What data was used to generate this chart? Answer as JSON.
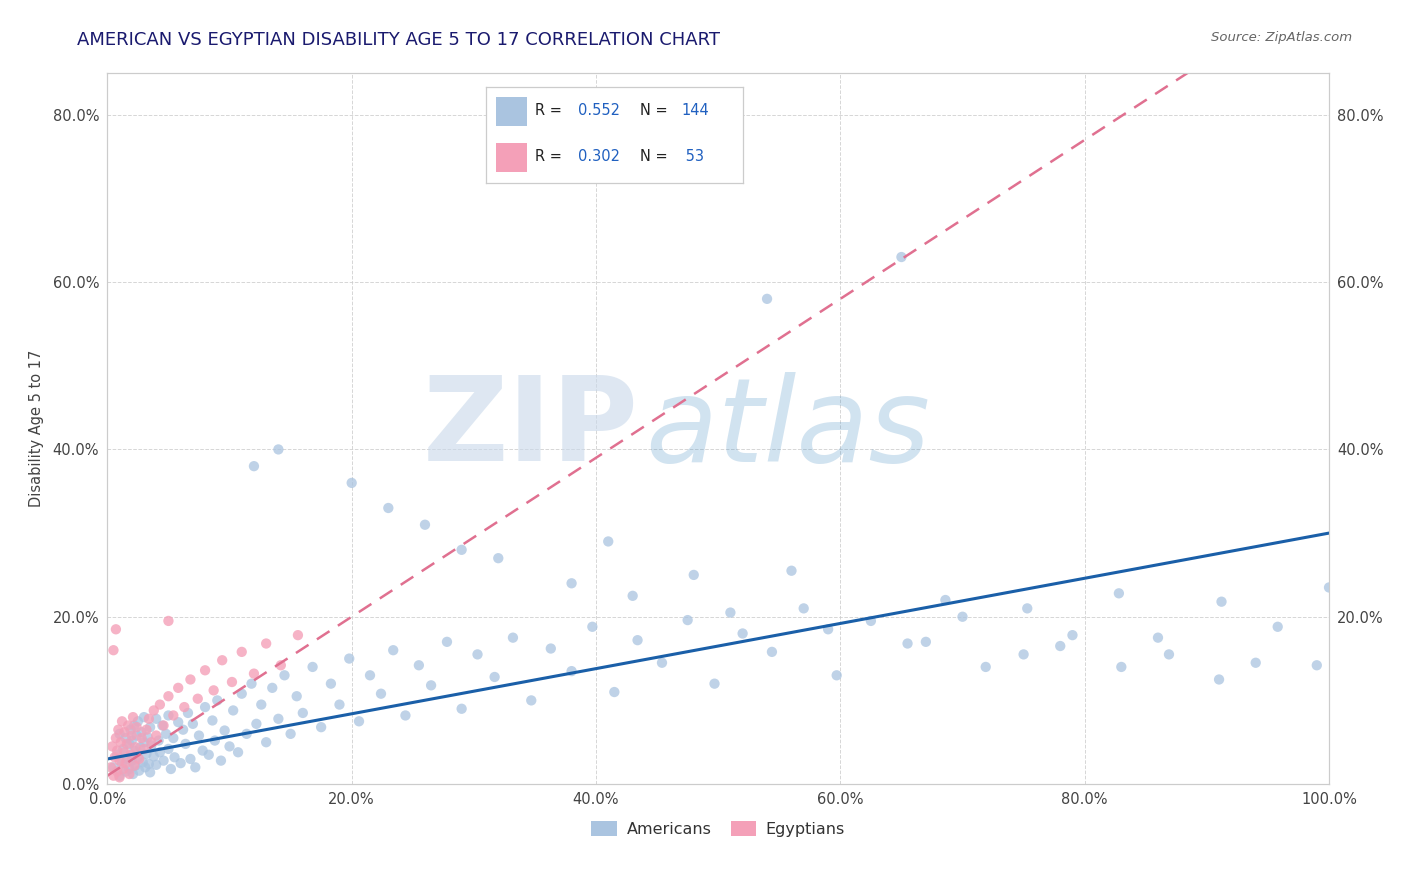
{
  "title": "AMERICAN VS EGYPTIAN DISABILITY AGE 5 TO 17 CORRELATION CHART",
  "source": "Source: ZipAtlas.com",
  "ylabel": "Disability Age 5 to 17",
  "xlim": [
    0.0,
    1.0
  ],
  "ylim": [
    0.0,
    0.85
  ],
  "xtick_labels": [
    "0.0%",
    "20.0%",
    "40.0%",
    "60.0%",
    "80.0%",
    "100.0%"
  ],
  "xtick_vals": [
    0.0,
    0.2,
    0.4,
    0.6,
    0.8,
    1.0
  ],
  "ytick_vals": [
    0.0,
    0.2,
    0.4,
    0.6,
    0.8
  ],
  "ytick_labels": [
    "0.0%",
    "20.0%",
    "40.0%",
    "60.0%",
    "80.0%"
  ],
  "right_ytick_vals": [
    0.2,
    0.4,
    0.6,
    0.8
  ],
  "right_ytick_labels": [
    "20.0%",
    "40.0%",
    "60.0%",
    "80.0%"
  ],
  "legend_label_americans": "Americans",
  "legend_label_egyptians": "Egyptians",
  "american_color": "#aac4e0",
  "egyptian_color": "#f4a0b8",
  "american_line_color": "#1a5fa8",
  "egyptian_line_color": "#e07090",
  "watermark_zip": "ZIP",
  "watermark_atlas": "atlas",
  "watermark_color_zip": "#c8d8ea",
  "watermark_color_atlas": "#4a90c4",
  "background_color": "#ffffff",
  "grid_color": "#cccccc",
  "title_color": "#1a1a6e",
  "legend_value_color": "#2060c0",
  "legend_box_border": "#cccccc",
  "americans_x": [
    0.005,
    0.008,
    0.01,
    0.01,
    0.012,
    0.013,
    0.015,
    0.015,
    0.016,
    0.018,
    0.018,
    0.019,
    0.02,
    0.02,
    0.021,
    0.022,
    0.022,
    0.023,
    0.024,
    0.025,
    0.025,
    0.026,
    0.027,
    0.028,
    0.029,
    0.03,
    0.03,
    0.031,
    0.032,
    0.033,
    0.034,
    0.035,
    0.035,
    0.036,
    0.038,
    0.04,
    0.04,
    0.042,
    0.043,
    0.045,
    0.046,
    0.048,
    0.05,
    0.05,
    0.052,
    0.054,
    0.055,
    0.058,
    0.06,
    0.062,
    0.064,
    0.066,
    0.068,
    0.07,
    0.072,
    0.075,
    0.078,
    0.08,
    0.083,
    0.086,
    0.088,
    0.09,
    0.093,
    0.096,
    0.1,
    0.103,
    0.107,
    0.11,
    0.114,
    0.118,
    0.122,
    0.126,
    0.13,
    0.135,
    0.14,
    0.145,
    0.15,
    0.155,
    0.16,
    0.168,
    0.175,
    0.183,
    0.19,
    0.198,
    0.206,
    0.215,
    0.224,
    0.234,
    0.244,
    0.255,
    0.265,
    0.278,
    0.29,
    0.303,
    0.317,
    0.332,
    0.347,
    0.363,
    0.38,
    0.397,
    0.415,
    0.434,
    0.454,
    0.475,
    0.497,
    0.52,
    0.544,
    0.57,
    0.597,
    0.625,
    0.655,
    0.686,
    0.719,
    0.753,
    0.79,
    0.828,
    0.869,
    0.912,
    0.958,
    1.0,
    0.54,
    0.65,
    0.32,
    0.41,
    0.48,
    0.56,
    0.7,
    0.78,
    0.86,
    0.94,
    0.2,
    0.23,
    0.26,
    0.29,
    0.38,
    0.43,
    0.51,
    0.59,
    0.67,
    0.75,
    0.83,
    0.91,
    0.99,
    0.12,
    0.14
  ],
  "americans_y": [
    0.02,
    0.035,
    0.01,
    0.06,
    0.025,
    0.042,
    0.015,
    0.055,
    0.03,
    0.048,
    0.018,
    0.065,
    0.028,
    0.052,
    0.012,
    0.04,
    0.07,
    0.022,
    0.058,
    0.032,
    0.075,
    0.016,
    0.044,
    0.062,
    0.026,
    0.05,
    0.08,
    0.02,
    0.036,
    0.056,
    0.024,
    0.068,
    0.014,
    0.046,
    0.033,
    0.078,
    0.023,
    0.052,
    0.038,
    0.07,
    0.028,
    0.06,
    0.042,
    0.082,
    0.018,
    0.055,
    0.032,
    0.074,
    0.025,
    0.065,
    0.048,
    0.085,
    0.03,
    0.072,
    0.02,
    0.058,
    0.04,
    0.092,
    0.035,
    0.076,
    0.052,
    0.1,
    0.028,
    0.064,
    0.045,
    0.088,
    0.038,
    0.108,
    0.06,
    0.12,
    0.072,
    0.095,
    0.05,
    0.115,
    0.078,
    0.13,
    0.06,
    0.105,
    0.085,
    0.14,
    0.068,
    0.12,
    0.095,
    0.15,
    0.075,
    0.13,
    0.108,
    0.16,
    0.082,
    0.142,
    0.118,
    0.17,
    0.09,
    0.155,
    0.128,
    0.175,
    0.1,
    0.162,
    0.135,
    0.188,
    0.11,
    0.172,
    0.145,
    0.196,
    0.12,
    0.18,
    0.158,
    0.21,
    0.13,
    0.195,
    0.168,
    0.22,
    0.14,
    0.21,
    0.178,
    0.228,
    0.155,
    0.218,
    0.188,
    0.235,
    0.58,
    0.63,
    0.27,
    0.29,
    0.25,
    0.255,
    0.2,
    0.165,
    0.175,
    0.145,
    0.36,
    0.33,
    0.31,
    0.28,
    0.24,
    0.225,
    0.205,
    0.185,
    0.17,
    0.155,
    0.14,
    0.125,
    0.142,
    0.38,
    0.4
  ],
  "egyptians_x": [
    0.003,
    0.004,
    0.005,
    0.006,
    0.007,
    0.008,
    0.008,
    0.009,
    0.01,
    0.01,
    0.011,
    0.012,
    0.013,
    0.014,
    0.014,
    0.015,
    0.016,
    0.017,
    0.018,
    0.019,
    0.02,
    0.021,
    0.022,
    0.023,
    0.024,
    0.026,
    0.028,
    0.03,
    0.032,
    0.034,
    0.036,
    0.038,
    0.04,
    0.043,
    0.046,
    0.05,
    0.054,
    0.058,
    0.063,
    0.068,
    0.074,
    0.08,
    0.087,
    0.094,
    0.102,
    0.11,
    0.12,
    0.13,
    0.142,
    0.156,
    0.005,
    0.007,
    0.05
  ],
  "egyptians_y": [
    0.02,
    0.045,
    0.01,
    0.032,
    0.055,
    0.015,
    0.04,
    0.065,
    0.008,
    0.028,
    0.05,
    0.075,
    0.018,
    0.038,
    0.062,
    0.025,
    0.048,
    0.07,
    0.012,
    0.035,
    0.058,
    0.08,
    0.022,
    0.044,
    0.068,
    0.03,
    0.055,
    0.042,
    0.065,
    0.078,
    0.05,
    0.088,
    0.058,
    0.095,
    0.07,
    0.105,
    0.082,
    0.115,
    0.092,
    0.125,
    0.102,
    0.136,
    0.112,
    0.148,
    0.122,
    0.158,
    0.132,
    0.168,
    0.142,
    0.178,
    0.16,
    0.185,
    0.195
  ],
  "american_R": 0.552,
  "egyptian_R": 0.302,
  "am_line_x0": 0.0,
  "am_line_y0": 0.03,
  "am_line_x1": 1.0,
  "am_line_y1": 0.3,
  "eg_line_x0": 0.0,
  "eg_line_y0": 0.01,
  "eg_line_x1": 0.2,
  "eg_line_y1": 0.2,
  "title_fontsize": 13,
  "axis_fontsize": 10.5,
  "marker_size": 55
}
